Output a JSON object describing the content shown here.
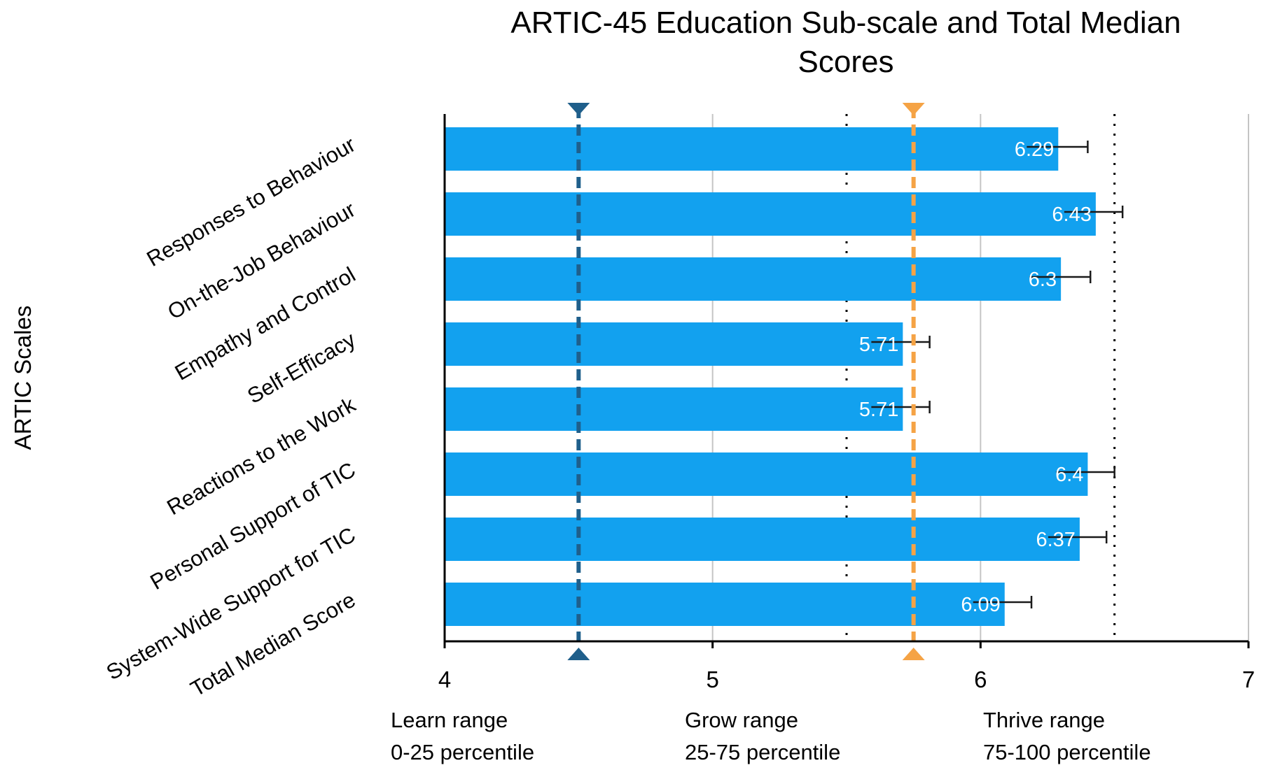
{
  "chart_data": {
    "type": "bar",
    "orientation": "horizontal",
    "title_lines": [
      "ARTIC-45 Education Sub-scale and Total Median",
      "Scores"
    ],
    "ylabel": "ARTIC Scales",
    "xlabel": "",
    "xlim": [
      4,
      7
    ],
    "xticks": [
      4,
      5,
      6,
      7
    ],
    "grid": true,
    "categories": [
      "Responses to Behaviour",
      "On-the-Job Behaviour",
      "Empathy and Control",
      "Self-Efficacy",
      "Reactions to the Work",
      "Personal Support of TIC",
      "System-Wide Support for TIC",
      "Total Median Score"
    ],
    "values": [
      6.29,
      6.43,
      6.3,
      5.71,
      5.71,
      6.4,
      6.37,
      6.09
    ],
    "value_labels": [
      "6.29",
      "6.43",
      "6.3",
      "5.71",
      "5.71",
      "6.4",
      "6.37",
      "6.09"
    ],
    "error_upper": [
      6.4,
      6.53,
      6.41,
      5.81,
      5.81,
      6.5,
      6.47,
      6.19
    ],
    "range_boundaries": [
      5.5,
      6.5
    ],
    "reference_lines": [
      {
        "name": "25th percentile marker",
        "value": 4.5,
        "color": "#1f5f8b"
      },
      {
        "name": "75th percentile marker",
        "value": 5.75,
        "color": "#f5a345"
      }
    ],
    "range_labels": [
      {
        "name": "Learn range",
        "sub": "0-25 percentile"
      },
      {
        "name": "Grow range",
        "sub": "25-75 percentile"
      },
      {
        "name": "Thrive range",
        "sub": "75-100 percentile"
      }
    ],
    "colors": {
      "bar": "#12a1ef",
      "grid": "#c4c4c4",
      "axis": "#000000"
    }
  }
}
